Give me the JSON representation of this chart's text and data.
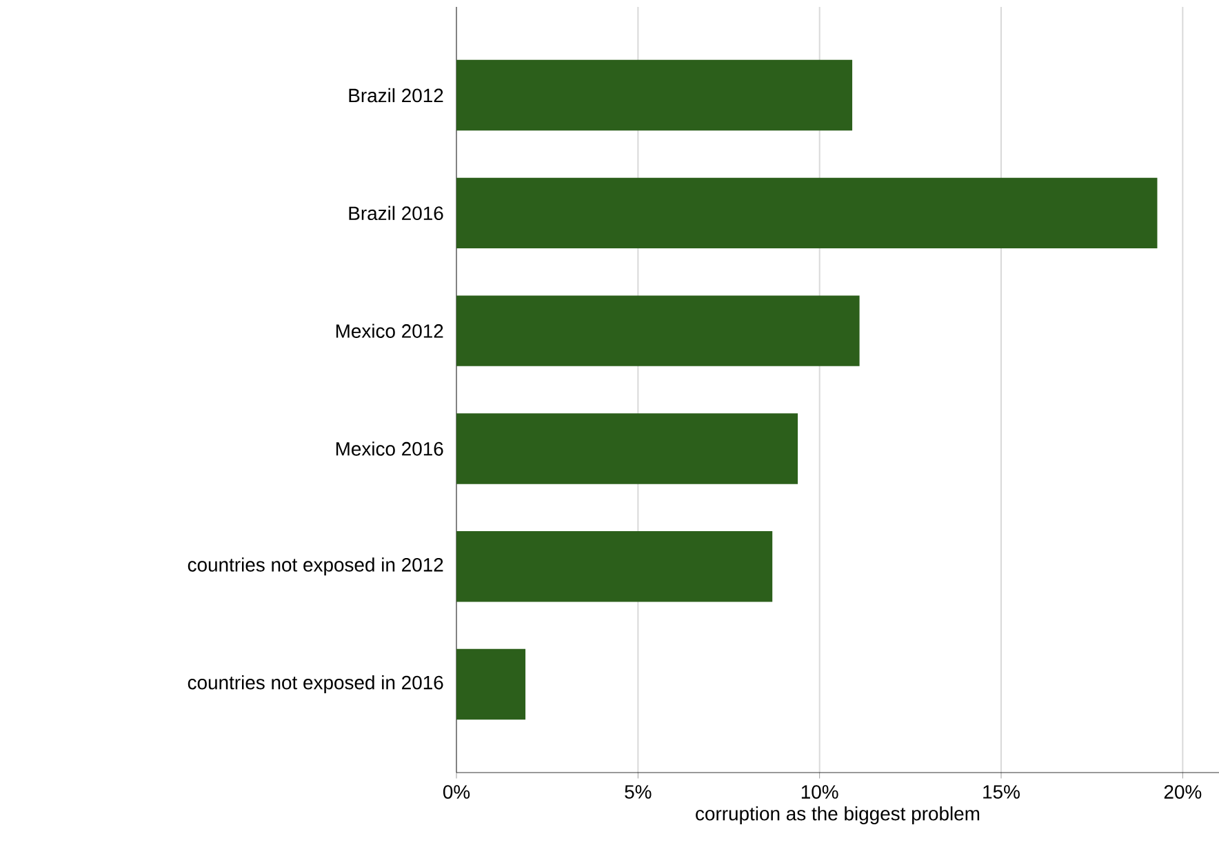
{
  "chart_data": {
    "type": "bar",
    "orientation": "horizontal",
    "xlabel": "corruption as the biggest problem",
    "categories": [
      "Brazil 2012",
      "Brazil 2016",
      "Mexico 2012",
      "Mexico 2016",
      "countries not exposed in 2012",
      "countries not exposed in 2016"
    ],
    "values": [
      10.9,
      19.3,
      11.1,
      9.4,
      8.7,
      1.9
    ],
    "color": "#2c5f1b",
    "xlim": [
      0,
      21
    ],
    "xticks": [
      {
        "value": 0,
        "label": "0%"
      },
      {
        "value": 5,
        "label": "5%"
      },
      {
        "value": 10,
        "label": "10%"
      },
      {
        "value": 15,
        "label": "15%"
      },
      {
        "value": 20,
        "label": "20%"
      }
    ],
    "grid": "x"
  }
}
